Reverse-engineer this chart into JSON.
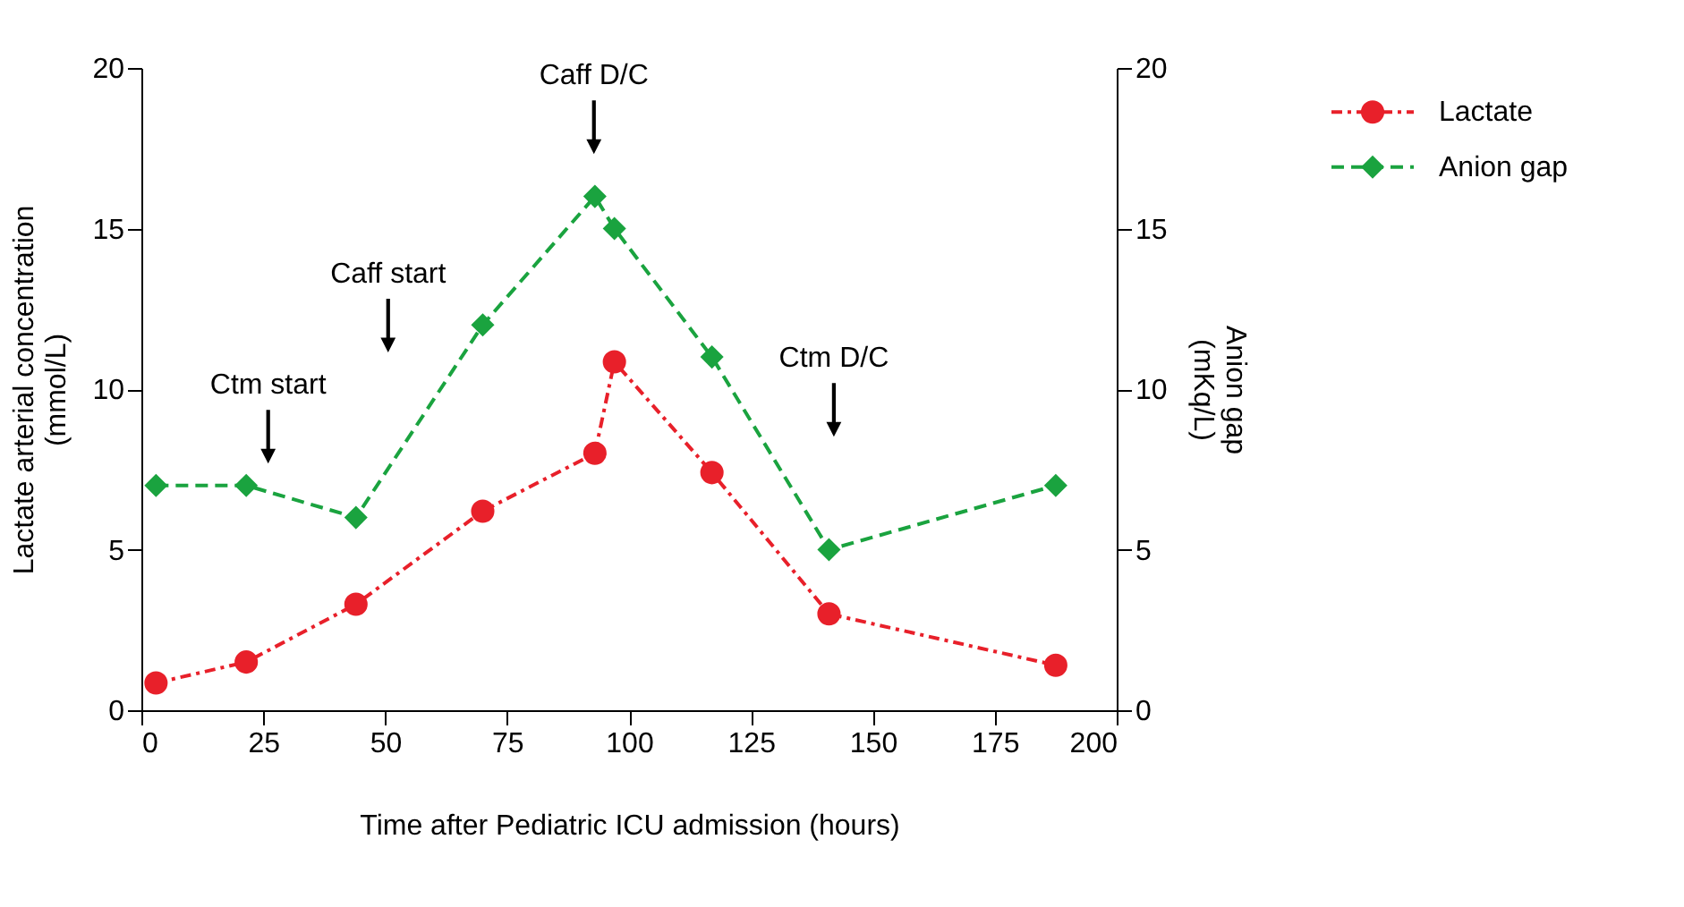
{
  "chart_data": {
    "type": "line",
    "xlabel": "Time after Pediatric ICU admission (hours)",
    "ylabel": "Lactate arterial concentration\n(mmol/L)",
    "y2label": "Anion gap\n(mKq/L)",
    "xlim": [
      0,
      200
    ],
    "xticks": [
      0,
      25,
      50,
      75,
      100,
      125,
      150,
      175,
      200
    ],
    "ylim": [
      0,
      20
    ],
    "yticks": [
      0,
      5,
      10,
      15,
      20
    ],
    "y2lim": [
      0,
      20
    ],
    "y2ticks": [
      0,
      5,
      10,
      15,
      20
    ],
    "grid": false,
    "legend": "top right",
    "series": [
      {
        "name": "Lactate",
        "color": "#e8202a",
        "marker": "circle",
        "line_style": "dashdot",
        "x": [
          3,
          21.5,
          44,
          70,
          93,
          97,
          117,
          141,
          187.5
        ],
        "values": [
          0.85,
          1.5,
          3.3,
          6.2,
          8.0,
          10.85,
          7.4,
          3.0,
          1.4
        ]
      },
      {
        "name": "Anion gap",
        "color": "#1aa33f",
        "marker": "diamond",
        "line_style": "dashed",
        "axis": "y2",
        "x": [
          3,
          21.5,
          44,
          70,
          93,
          97,
          117,
          141,
          187.5
        ],
        "values": [
          7,
          7,
          6,
          12,
          16,
          15,
          11,
          5,
          7
        ]
      }
    ],
    "annotations": [
      "Ctm start",
      "Caff start",
      "Caff D/C",
      "Ctm D/C"
    ]
  }
}
